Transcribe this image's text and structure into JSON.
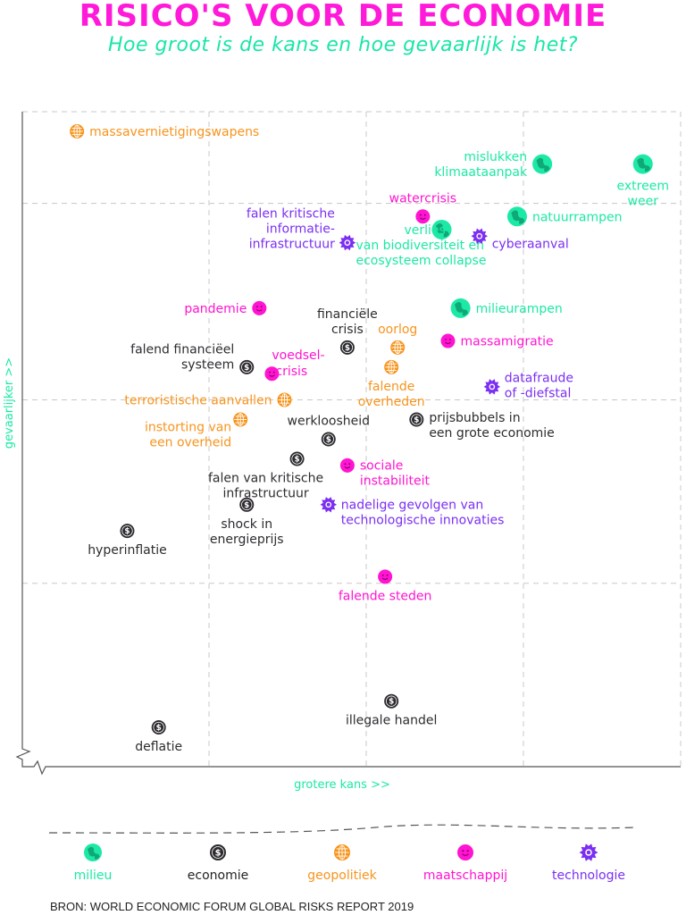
{
  "title": "RISICO'S VOOR DE ECONOMIE",
  "subtitle": "Hoe groot is de kans en hoe gevaarlijk is het?",
  "source": "BRON: WORLD ECONOMIC FORUM GLOBAL RISKS REPORT 2019",
  "colors": {
    "milieu": "#1de9a6",
    "economie": "#2e2b30",
    "geopolitiek": "#f7941d",
    "maatschappij": "#ff14d1",
    "technologie": "#7b2ff2",
    "grid": "#c8c8c8"
  },
  "legend": [
    {
      "category": "milieu",
      "label": "milieu",
      "icon": "globe-icon"
    },
    {
      "category": "economie",
      "label": "economie",
      "icon": "dollar-coin-icon"
    },
    {
      "category": "geopolitiek",
      "label": "geopolitiek",
      "icon": "grid-globe-icon"
    },
    {
      "category": "maatschappij",
      "label": "maatschappij",
      "icon": "smiley-icon"
    },
    {
      "category": "technologie",
      "label": "technologie",
      "icon": "gear-icon"
    }
  ],
  "chart_data": {
    "type": "scatter",
    "xlabel": "grotere kans >>",
    "ylabel": "gevaarlijker >>",
    "grid": true,
    "points": [
      {
        "label": "massavernietigingswapens",
        "category": "geopolitiek",
        "x": 0.04,
        "y": 0.97
      },
      {
        "label": "mislukken klimaataanpak",
        "category": "milieu",
        "x": 0.78,
        "y": 0.92
      },
      {
        "label": "extreem weer",
        "category": "milieu",
        "x": 0.94,
        "y": 0.92
      },
      {
        "label": "watercrisis",
        "category": "maatschappij",
        "x": 0.59,
        "y": 0.84
      },
      {
        "label": "natuurrampen",
        "category": "milieu",
        "x": 0.74,
        "y": 0.84
      },
      {
        "label": "verlies van biodiversiteit en ecosysteem collapse",
        "category": "milieu",
        "x": 0.62,
        "y": 0.82
      },
      {
        "label": "cyberaanval",
        "category": "technologie",
        "x": 0.68,
        "y": 0.81
      },
      {
        "label": "falen kritische informatie-infrastructuur",
        "category": "technologie",
        "x": 0.47,
        "y": 0.8
      },
      {
        "label": "pandemie",
        "category": "maatschappij",
        "x": 0.33,
        "y": 0.7
      },
      {
        "label": "milieurampen",
        "category": "milieu",
        "x": 0.65,
        "y": 0.7
      },
      {
        "label": "financiële crisis",
        "category": "economie",
        "x": 0.47,
        "y": 0.64
      },
      {
        "label": "massamigratie",
        "category": "maatschappij",
        "x": 0.63,
        "y": 0.65
      },
      {
        "label": "oorlog",
        "category": "geopolitiek",
        "x": 0.55,
        "y": 0.64
      },
      {
        "label": "falend financiëel systeem",
        "category": "economie",
        "x": 0.31,
        "y": 0.61
      },
      {
        "label": "voedsel-crisis",
        "category": "maatschappij",
        "x": 0.35,
        "y": 0.6
      },
      {
        "label": "falende overheden",
        "category": "geopolitiek",
        "x": 0.54,
        "y": 0.61
      },
      {
        "label": "datafraude of -diefstal",
        "category": "technologie",
        "x": 0.7,
        "y": 0.58
      },
      {
        "label": "terroristische aanvallen",
        "category": "geopolitiek",
        "x": 0.37,
        "y": 0.56
      },
      {
        "label": "prijsbubbels in een grote economie",
        "category": "economie",
        "x": 0.58,
        "y": 0.53
      },
      {
        "label": "instorting van een overheid",
        "category": "geopolitiek",
        "x": 0.3,
        "y": 0.53
      },
      {
        "label": "werkloosheid",
        "category": "economie",
        "x": 0.44,
        "y": 0.5
      },
      {
        "label": "falen van kritische infrastructuur",
        "category": "economie",
        "x": 0.39,
        "y": 0.47
      },
      {
        "label": "sociale instabiliteit",
        "category": "maatschappij",
        "x": 0.47,
        "y": 0.46
      },
      {
        "label": "shock in energieprijs",
        "category": "economie",
        "x": 0.31,
        "y": 0.4
      },
      {
        "label": "nadelige gevolgen van technologische innovaties",
        "category": "technologie",
        "x": 0.44,
        "y": 0.4
      },
      {
        "label": "hyperinflatie",
        "category": "economie",
        "x": 0.12,
        "y": 0.36
      },
      {
        "label": "falende steden",
        "category": "maatschappij",
        "x": 0.53,
        "y": 0.29
      },
      {
        "label": "illegale handel",
        "category": "economie",
        "x": 0.54,
        "y": 0.1
      },
      {
        "label": "deflatie",
        "category": "economie",
        "x": 0.17,
        "y": 0.06
      }
    ]
  }
}
